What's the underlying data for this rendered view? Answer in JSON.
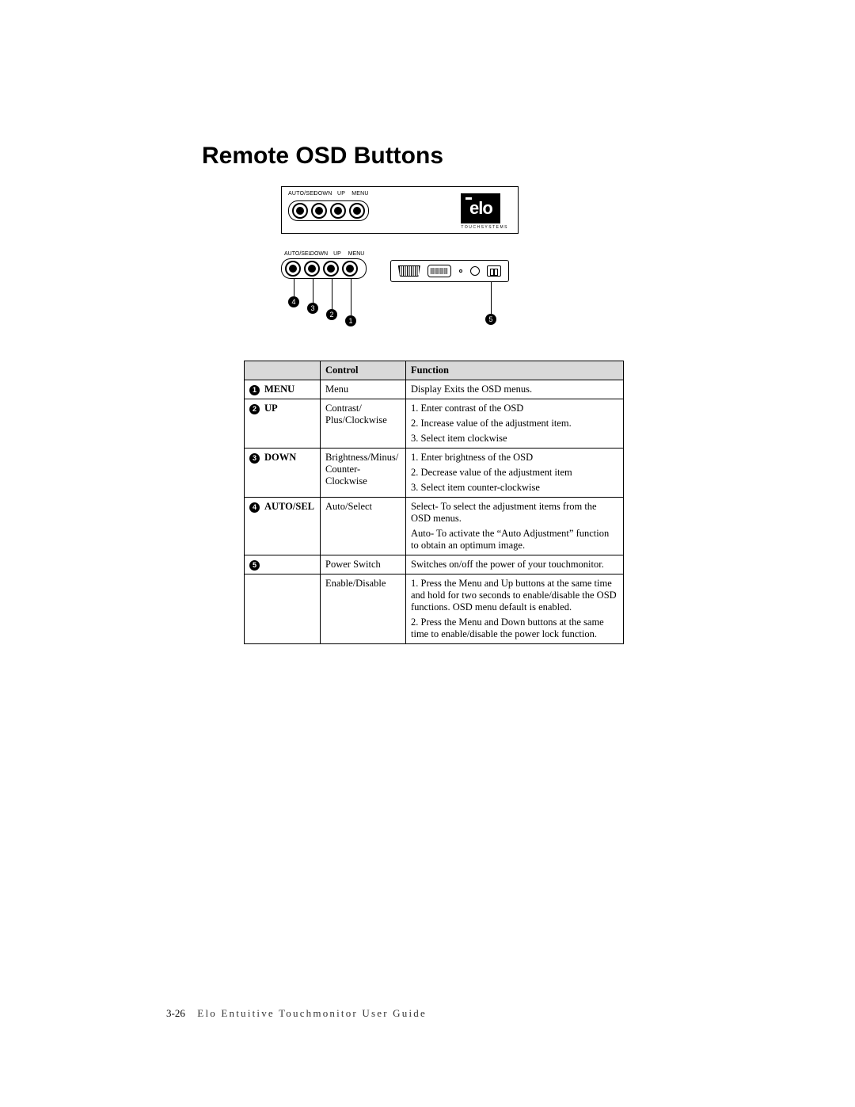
{
  "title": "Remote OSD Buttons",
  "button_labels": [
    "AUTO/SEL",
    "DOWN",
    "UP",
    "MENU"
  ],
  "logo_text": "elo",
  "logo_sub": "TOUCHSYSTEMS",
  "callouts": {
    "b1": "4",
    "b2": "3",
    "b3": "2",
    "b4": "1",
    "conn": "5"
  },
  "table": {
    "headers": {
      "label": "",
      "control": "Control",
      "function": "Function"
    },
    "rows": [
      {
        "num": "1",
        "label": "MENU",
        "control": "Menu",
        "function": [
          "Display Exits the OSD menus."
        ]
      },
      {
        "num": "2",
        "label": "UP",
        "control": "Contrast/ Plus/Clockwise",
        "function": [
          "1. Enter contrast of the OSD",
          "2. Increase value of the adjustment item.",
          "3. Select item clockwise"
        ]
      },
      {
        "num": "3",
        "label": "DOWN",
        "control": "Brightness/Minus/ Counter-Clockwise",
        "function": [
          "1. Enter brightness of the OSD",
          "2. Decrease value of the adjustment item",
          "3. Select item counter-clockwise"
        ]
      },
      {
        "num": "4",
        "label": "AUTO/SEL",
        "control": "Auto/Select",
        "function": [
          "Select- To select the adjustment items from the OSD menus.",
          "Auto- To activate the “Auto Adjustment” function to obtain an optimum image."
        ]
      },
      {
        "num": "5",
        "label": "",
        "control": "Power Switch",
        "function": [
          "Switches on/off the power of your touchmonitor."
        ]
      },
      {
        "num": "",
        "label": "",
        "control": "Enable/Disable",
        "function": [
          "1. Press the Menu and Up buttons at the same time and hold for two seconds to enable/disable the OSD functions. OSD menu default is enabled.",
          "2. Press the Menu and Down buttons at the same time to enable/disable the power lock function."
        ]
      }
    ]
  },
  "footer": {
    "page": "3-26",
    "text": "Elo Entuitive Touchmonitor User Guide"
  },
  "colors": {
    "header_bg": "#d9d9d9",
    "text": "#000000",
    "bg": "#ffffff"
  }
}
